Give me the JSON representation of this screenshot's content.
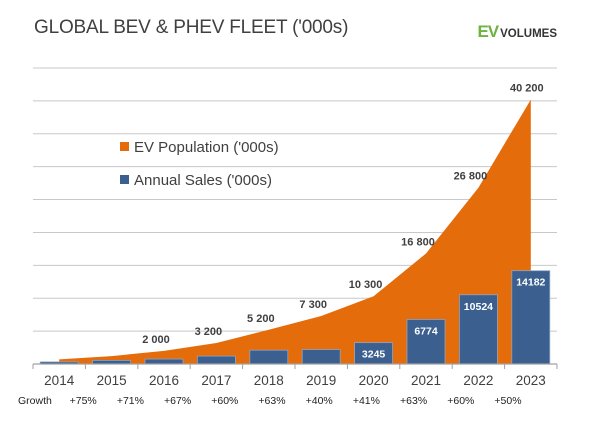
{
  "header": {
    "title": "GLOBAL BEV & PHEV FLEET ('000s)",
    "logo_ev": "EV",
    "logo_rest": "VOLUMES"
  },
  "chart_data": {
    "type": "bar+area",
    "title": "GLOBAL BEV & PHEV FLEET ('000s)",
    "categories": [
      "2014",
      "2015",
      "2016",
      "2017",
      "2018",
      "2019",
      "2020",
      "2021",
      "2022",
      "2023"
    ],
    "ylim": [
      0,
      45000
    ],
    "grid": true,
    "legend_position": "upper-left",
    "series": [
      {
        "name": "EV Population ('000s)",
        "type": "area",
        "color": "#e46c0a",
        "values": [
          700,
          1200,
          2000,
          3200,
          5200,
          7300,
          10300,
          16800,
          26800,
          40200
        ],
        "labels": [
          "",
          "",
          "2 000",
          "3 200",
          "5 200",
          "7 300",
          "10 300",
          "16 800",
          "26 800",
          "40 200"
        ]
      },
      {
        "name": "Annual Sales ('000s)",
        "type": "bar",
        "color": "#3b5f8e",
        "values": [
          320,
          550,
          750,
          1200,
          2100,
          2200,
          3245,
          6774,
          10524,
          14182
        ],
        "labels": [
          "",
          "",
          "",
          "",
          "",
          "",
          "3245",
          "6774",
          "10524",
          "14182"
        ]
      }
    ],
    "growth_label": "Growth",
    "growth": [
      "+75%",
      "+71%",
      "+67%",
      "+60%",
      "+63%",
      "+40%",
      "+41%",
      "+63%",
      "+60%",
      "+50%"
    ]
  }
}
